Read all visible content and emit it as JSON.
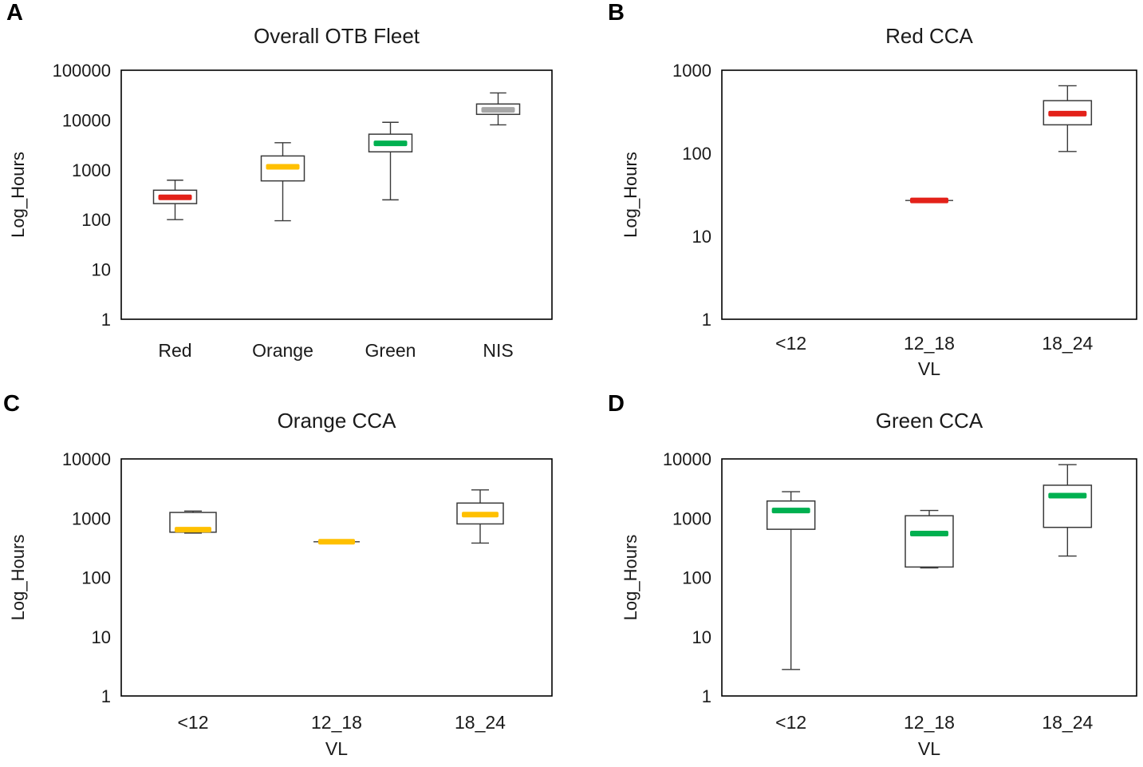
{
  "chart_data": [
    {
      "type": "box",
      "letter": "A",
      "title": "Overall OTB Fleet",
      "ylabel": "Log_Hours",
      "xlabel": "",
      "yscale": "log",
      "ylim": [
        1,
        100000
      ],
      "yticks": [
        100000,
        10000,
        1000,
        100,
        10,
        1
      ],
      "grid": false,
      "categories": [
        "Red",
        "Orange",
        "Green",
        "NIS"
      ],
      "boxes": [
        {
          "category": "Red",
          "color": "#e32119",
          "low": 100,
          "q1": 210,
          "median": 280,
          "q3": 390,
          "high": 620
        },
        {
          "category": "Orange",
          "color": "#ffc000",
          "low": 95,
          "q1": 600,
          "median": 1150,
          "q3": 1900,
          "high": 3500
        },
        {
          "category": "Green",
          "color": "#00b050",
          "low": 250,
          "q1": 2300,
          "median": 3400,
          "q3": 5200,
          "high": 9000
        },
        {
          "category": "NIS",
          "color": "#a6a6a6",
          "low": 8000,
          "q1": 13000,
          "median": 16000,
          "q3": 21000,
          "high": 35000
        }
      ]
    },
    {
      "type": "box",
      "letter": "B",
      "title": "Red CCA",
      "ylabel": "Log_Hours",
      "xlabel": "VL",
      "yscale": "log",
      "ylim": [
        1,
        1000
      ],
      "yticks": [
        1000,
        100,
        10,
        1
      ],
      "grid": false,
      "categories": [
        "<12",
        "12_18",
        "18_24"
      ],
      "boxes": [
        null,
        {
          "category": "12_18",
          "color": "#e32119",
          "low": 27,
          "q1": 27,
          "median": 27,
          "q3": 27,
          "high": 27
        },
        {
          "category": "18_24",
          "color": "#e32119",
          "low": 105,
          "q1": 220,
          "median": 300,
          "q3": 430,
          "high": 650
        }
      ]
    },
    {
      "type": "box",
      "letter": "C",
      "title": "Orange CCA",
      "ylabel": "Log_Hours",
      "xlabel": "VL",
      "yscale": "log",
      "ylim": [
        1,
        10000
      ],
      "yticks": [
        10000,
        1000,
        100,
        10,
        1
      ],
      "grid": false,
      "categories": [
        "<12",
        "12_18",
        "18_24"
      ],
      "boxes": [
        {
          "category": "<12",
          "color": "#ffc000",
          "low": 560,
          "q1": 580,
          "median": 640,
          "q3": 1250,
          "high": 1320
        },
        {
          "category": "12_18",
          "color": "#ffc000",
          "low": 400,
          "q1": 400,
          "median": 400,
          "q3": 400,
          "high": 400
        },
        {
          "category": "18_24",
          "color": "#ffc000",
          "low": 380,
          "q1": 800,
          "median": 1150,
          "q3": 1800,
          "high": 3000
        }
      ]
    },
    {
      "type": "box",
      "letter": "D",
      "title": "Green CCA",
      "ylabel": "Log_Hours",
      "xlabel": "VL",
      "yscale": "log",
      "ylim": [
        1,
        10000
      ],
      "yticks": [
        10000,
        1000,
        100,
        10,
        1
      ],
      "grid": false,
      "categories": [
        "<12",
        "12_18",
        "18_24"
      ],
      "boxes": [
        {
          "category": "<12",
          "color": "#00b050",
          "low": 2.8,
          "q1": 650,
          "median": 1350,
          "q3": 1950,
          "high": 2800
        },
        {
          "category": "12_18",
          "color": "#00b050",
          "low": 145,
          "q1": 150,
          "median": 550,
          "q3": 1100,
          "high": 1350
        },
        {
          "category": "18_24",
          "color": "#00b050",
          "low": 230,
          "q1": 700,
          "median": 2400,
          "q3": 3600,
          "high": 8000
        }
      ]
    }
  ]
}
